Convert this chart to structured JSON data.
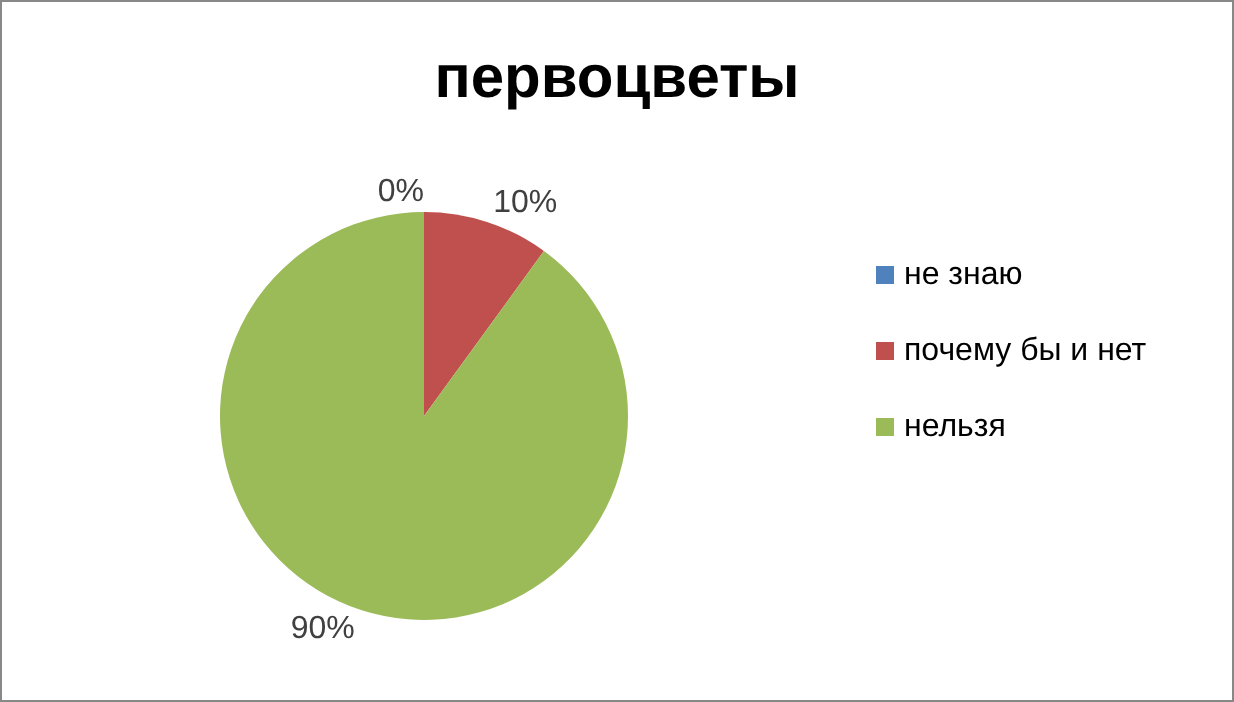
{
  "chart_data": {
    "type": "pie",
    "title": "первоцветы",
    "categories": [
      "не знаю",
      "почему бы и нет",
      "нельзя"
    ],
    "values": [
      0,
      10,
      90
    ],
    "colors": [
      "#4f81bd",
      "#c0504d",
      "#9bbb59"
    ],
    "value_labels": [
      "0%",
      "10%",
      "90%"
    ],
    "legend": "right"
  }
}
